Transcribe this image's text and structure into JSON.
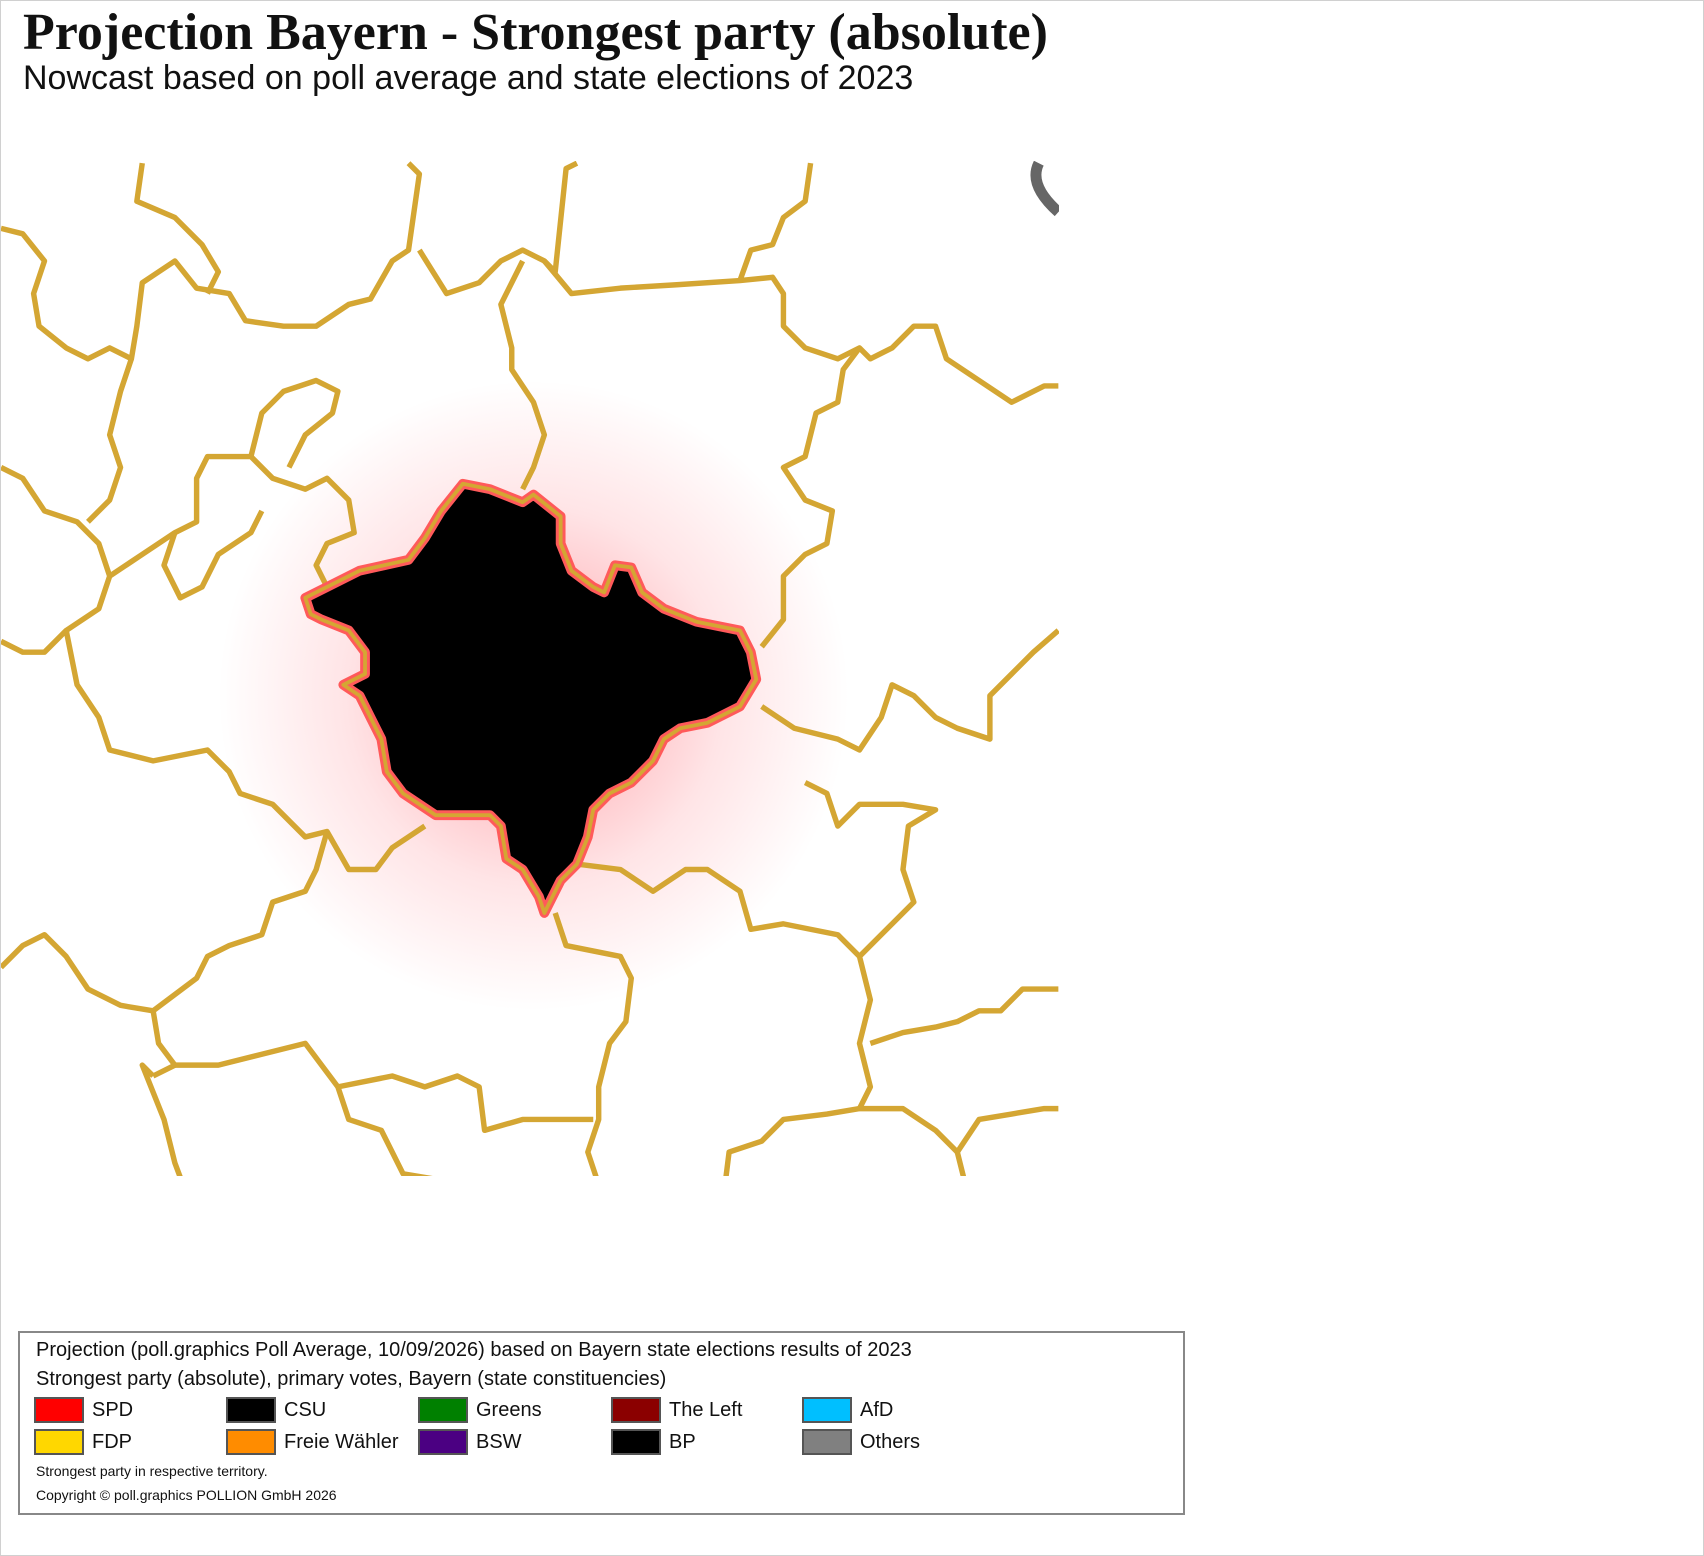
{
  "header": {
    "title": "Projection Bayern - Strongest party (absolute)",
    "subtitle": "Nowcast based on poll average and state elections of 2023"
  },
  "legend": {
    "title_lines": [
      "Projection (poll.graphics Poll Average, 10/09/2026) based on Bayern state elections results of 2023",
      "Strongest party (absolute), primary votes, Bayern (state constituencies)"
    ],
    "items": [
      {
        "label": "SPD",
        "color": "#ff0000"
      },
      {
        "label": "CSU",
        "color": "#000000"
      },
      {
        "label": "Greens",
        "color": "#008000"
      },
      {
        "label": "The Left",
        "color": "#8b0000"
      },
      {
        "label": "AfD",
        "color": "#00bfff"
      },
      {
        "label": "FDP",
        "color": "#ffd700"
      },
      {
        "label": "Freie Wähler",
        "color": "#ff8c00"
      },
      {
        "label": "BSW",
        "color": "#4b0082"
      },
      {
        "label": "BP",
        "color": "#000000"
      },
      {
        "label": "Others",
        "color": "#808080"
      }
    ],
    "notes": [
      "Strongest party in respective territory.",
      "Copyright © poll.graphics POLLION GmbH 2026"
    ]
  }
}
